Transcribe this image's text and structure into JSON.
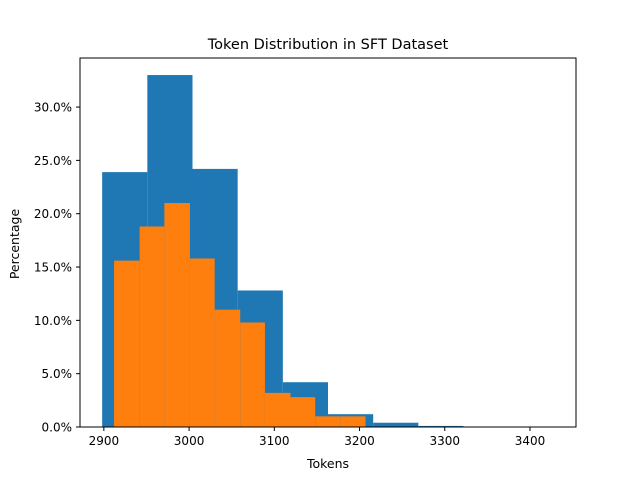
{
  "chart_data": {
    "type": "bar",
    "title": "Token Distribution in SFT Dataset",
    "xlabel": "Tokens",
    "ylabel": "Percentage",
    "xlim": [
      2872,
      3454
    ],
    "ylim": [
      0,
      34.6
    ],
    "x_ticks": [
      2900,
      3000,
      3100,
      3200,
      3300,
      3400
    ],
    "y_ticks": [
      0,
      5,
      10,
      15,
      20,
      25,
      30
    ],
    "y_tick_format": "percent_1dp",
    "grid": false,
    "legend": null,
    "series": [
      {
        "color": "#1f77b4",
        "bins": [
          {
            "x0": 2898,
            "x1": 2951,
            "value": 23.9
          },
          {
            "x0": 2951,
            "x1": 3004,
            "value": 33.0
          },
          {
            "x0": 3004,
            "x1": 3057,
            "value": 24.2
          },
          {
            "x0": 3057,
            "x1": 3110,
            "value": 12.8
          },
          {
            "x0": 3110,
            "x1": 3163,
            "value": 4.2
          },
          {
            "x0": 3163,
            "x1": 3216,
            "value": 1.2
          },
          {
            "x0": 3216,
            "x1": 3269,
            "value": 0.4
          },
          {
            "x0": 3269,
            "x1": 3322,
            "value": 0.1
          },
          {
            "x0": 3322,
            "x1": 3375,
            "value": 0.03
          },
          {
            "x0": 3375,
            "x1": 3428,
            "value": 0.02
          }
        ]
      },
      {
        "color": "#ff7f0e",
        "bins": [
          {
            "x0": 2912,
            "x1": 2942,
            "value": 15.6
          },
          {
            "x0": 2942,
            "x1": 2971,
            "value": 18.8
          },
          {
            "x0": 2971,
            "x1": 3001,
            "value": 21.0
          },
          {
            "x0": 3001,
            "x1": 3030,
            "value": 15.8
          },
          {
            "x0": 3030,
            "x1": 3060,
            "value": 11.0
          },
          {
            "x0": 3060,
            "x1": 3089,
            "value": 9.8
          },
          {
            "x0": 3089,
            "x1": 3119,
            "value": 3.2
          },
          {
            "x0": 3119,
            "x1": 3148,
            "value": 2.8
          },
          {
            "x0": 3148,
            "x1": 3178,
            "value": 1.0
          },
          {
            "x0": 3178,
            "x1": 3207,
            "value": 1.0
          }
        ]
      }
    ]
  }
}
